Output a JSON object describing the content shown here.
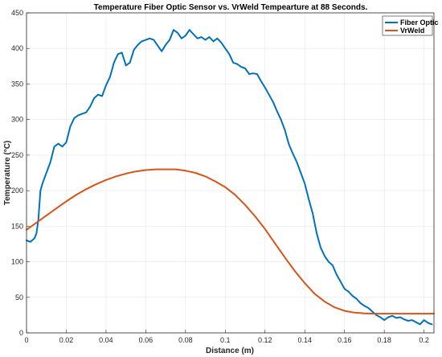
{
  "chart_data": {
    "type": "line",
    "title": "Temperature Fiber Optic Sensor vs. VrWeld Tempearture at 88 Seconds.",
    "xlabel": "Distance (m)",
    "ylabel": "Temperature (°C)",
    "xlim": [
      0,
      0.205
    ],
    "ylim": [
      0,
      450
    ],
    "xticks": [
      0,
      0.02,
      0.04,
      0.06,
      0.08,
      0.1,
      0.12,
      0.14,
      0.16,
      0.18,
      0.2
    ],
    "xtick_labels": [
      "0",
      "0.02",
      "0.04",
      "0.06",
      "0.08",
      "0.1",
      "0.12",
      "0.14",
      "0.16",
      "0.18",
      "0.2"
    ],
    "yticks": [
      0,
      50,
      100,
      150,
      200,
      250,
      300,
      350,
      400,
      450
    ],
    "ytick_labels": [
      "0",
      "50",
      "100",
      "150",
      "200",
      "250",
      "300",
      "350",
      "400",
      "450"
    ],
    "legend_position": "top-right",
    "series": [
      {
        "name": "Fiber Optic",
        "color": "#0072BD",
        "x": [
          0,
          0.002,
          0.004,
          0.005,
          0.006,
          0.007,
          0.008,
          0.01,
          0.012,
          0.014,
          0.016,
          0.018,
          0.02,
          0.022,
          0.024,
          0.026,
          0.028,
          0.03,
          0.032,
          0.034,
          0.036,
          0.038,
          0.04,
          0.042,
          0.044,
          0.046,
          0.048,
          0.05,
          0.052,
          0.054,
          0.056,
          0.058,
          0.06,
          0.062,
          0.064,
          0.066,
          0.068,
          0.07,
          0.072,
          0.074,
          0.076,
          0.078,
          0.08,
          0.082,
          0.084,
          0.086,
          0.088,
          0.09,
          0.092,
          0.094,
          0.096,
          0.098,
          0.1,
          0.102,
          0.104,
          0.106,
          0.108,
          0.11,
          0.112,
          0.114,
          0.116,
          0.118,
          0.12,
          0.122,
          0.124,
          0.126,
          0.128,
          0.13,
          0.132,
          0.134,
          0.136,
          0.138,
          0.14,
          0.142,
          0.144,
          0.146,
          0.148,
          0.15,
          0.152,
          0.154,
          0.156,
          0.158,
          0.16,
          0.162,
          0.164,
          0.166,
          0.168,
          0.17,
          0.172,
          0.174,
          0.176,
          0.178,
          0.18,
          0.182,
          0.184,
          0.186,
          0.188,
          0.19,
          0.192,
          0.194,
          0.196,
          0.198,
          0.2,
          0.202,
          0.204
        ],
        "y": [
          130,
          128,
          133,
          140,
          160,
          200,
          210,
          225,
          240,
          262,
          266,
          262,
          268,
          290,
          302,
          306,
          308,
          310,
          318,
          330,
          335,
          333,
          348,
          360,
          380,
          392,
          394,
          376,
          380,
          398,
          405,
          410,
          412,
          414,
          412,
          404,
          396,
          405,
          412,
          426,
          422,
          414,
          418,
          426,
          420,
          414,
          416,
          412,
          416,
          410,
          414,
          408,
          400,
          392,
          380,
          378,
          374,
          372,
          364,
          365,
          364,
          354,
          345,
          335,
          325,
          312,
          300,
          285,
          265,
          252,
          240,
          225,
          210,
          188,
          168,
          140,
          120,
          108,
          100,
          95,
          82,
          72,
          62,
          58,
          52,
          48,
          42,
          38,
          35,
          30,
          25,
          22,
          18,
          22,
          24,
          21,
          22,
          19,
          17,
          18,
          15,
          12,
          18,
          14,
          12
        ]
      },
      {
        "name": "VrWeld",
        "color": "#D95319",
        "x": [
          0,
          0.005,
          0.01,
          0.015,
          0.02,
          0.025,
          0.03,
          0.035,
          0.04,
          0.045,
          0.05,
          0.055,
          0.06,
          0.065,
          0.07,
          0.075,
          0.08,
          0.085,
          0.09,
          0.095,
          0.1,
          0.105,
          0.11,
          0.115,
          0.12,
          0.125,
          0.13,
          0.135,
          0.14,
          0.145,
          0.15,
          0.155,
          0.16,
          0.165,
          0.17,
          0.175,
          0.18,
          0.185,
          0.19,
          0.195,
          0.2,
          0.205
        ],
        "y": [
          145,
          155,
          165,
          175,
          185,
          194,
          202,
          209,
          215,
          220,
          224,
          227,
          229,
          230,
          230,
          230,
          228,
          225,
          220,
          213,
          205,
          194,
          180,
          164,
          146,
          126,
          106,
          87,
          70,
          55,
          44,
          36,
          31,
          28.5,
          27.5,
          27,
          27,
          27,
          27,
          27,
          27,
          27
        ]
      }
    ]
  }
}
